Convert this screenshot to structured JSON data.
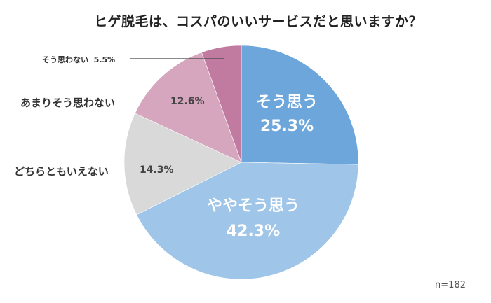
{
  "title": "ヒゲ脱毛は、コスパのいいサービスだと思いますか？",
  "sample_size": "n=182",
  "slices": [
    {
      "label": "そう思う",
      "value_text": "25.3%",
      "color": "#6ca6db"
    },
    {
      "label": "ややそう思う",
      "value_text": "42.3%",
      "color": "#9fc5e8"
    },
    {
      "label": "どちらともいえない",
      "value_text": "14.3%",
      "color": "#d9d9d9"
    },
    {
      "label": "あまりそう思わない",
      "value_text": "12.6%",
      "color": "#d5a6bd"
    },
    {
      "label": "そう思わない",
      "value_text": "5.5%",
      "color": "#c27ba0"
    }
  ],
  "chart_data": {
    "type": "pie",
    "title": "ヒゲ脱毛は、コスパのいいサービスだと思いますか？",
    "categories": [
      "そう思う",
      "ややそう思う",
      "どちらともいえない",
      "あまりそう思わない",
      "そう思わない"
    ],
    "values": [
      25.3,
      42.3,
      14.3,
      12.6,
      5.5
    ],
    "unit": "%",
    "colors": [
      "#6ca6db",
      "#9fc5e8",
      "#d9d9d9",
      "#d5a6bd",
      "#c27ba0"
    ],
    "start_angle": "12 o'clock, clockwise",
    "annotation": "n=182",
    "legend": "none (direct labels)"
  }
}
